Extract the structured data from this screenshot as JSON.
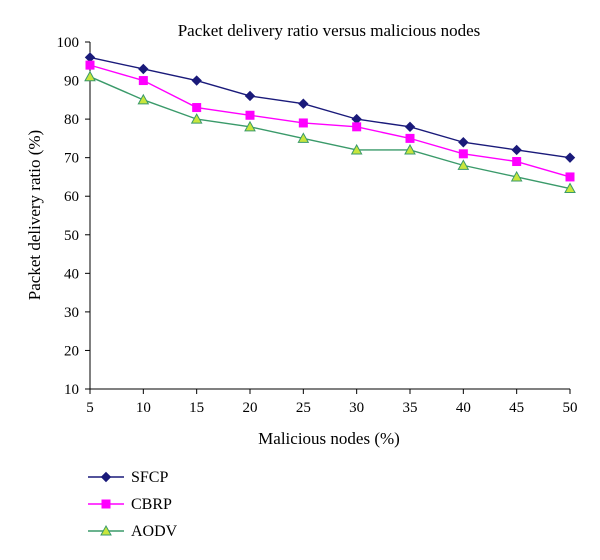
{
  "chart_data": {
    "type": "line",
    "title": "Packet delivery ratio versus malicious nodes",
    "xlabel": "Malicious nodes (%)",
    "ylabel": "Packet delivery ratio (%)",
    "x": [
      5,
      10,
      15,
      20,
      25,
      30,
      35,
      40,
      45,
      50
    ],
    "xlim": [
      5,
      50
    ],
    "ylim": [
      10,
      100
    ],
    "yticks": [
      10,
      20,
      30,
      40,
      50,
      60,
      70,
      80,
      90,
      100
    ],
    "grid": false,
    "legend_position": "bottom-left",
    "series": [
      {
        "name": "SFCP",
        "marker": "diamond",
        "color": "#1a1a7a",
        "values": [
          96,
          93,
          90,
          86,
          84,
          80,
          78,
          74,
          72,
          70
        ]
      },
      {
        "name": "CBRP",
        "marker": "square",
        "color": "#ff00ff",
        "values": [
          94,
          90,
          83,
          81,
          79,
          78,
          75,
          71,
          69,
          65
        ]
      },
      {
        "name": "AODV",
        "marker": "triangle",
        "color": "#3a9a6a",
        "fill": "#c8e63c",
        "values": [
          91,
          85,
          80,
          78,
          75,
          72,
          72,
          68,
          65,
          62
        ]
      }
    ]
  }
}
